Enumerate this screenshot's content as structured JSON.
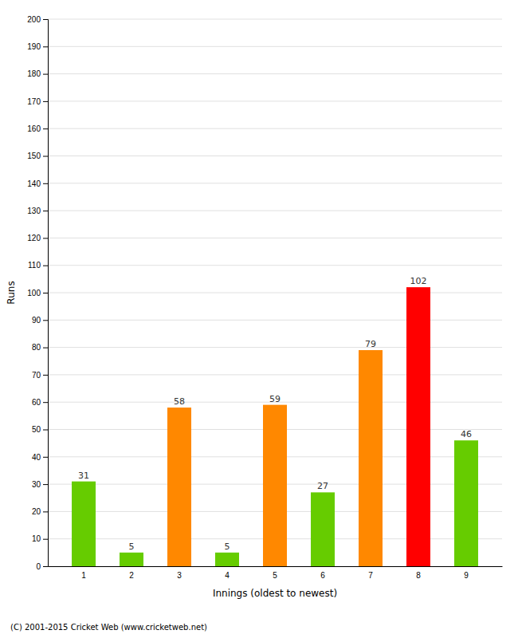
{
  "chart_data": {
    "type": "bar",
    "xlabel": "Innings (oldest to newest)",
    "ylabel": "Runs",
    "categories": [
      "1",
      "2",
      "3",
      "4",
      "5",
      "6",
      "7",
      "8",
      "9"
    ],
    "values": [
      31,
      5,
      58,
      5,
      59,
      27,
      79,
      102,
      46
    ],
    "colors": [
      "#66cc00",
      "#66cc00",
      "#ff8800",
      "#66cc00",
      "#ff8800",
      "#66cc00",
      "#ff8800",
      "#ff0000",
      "#66cc00"
    ],
    "ylim": [
      0,
      200
    ],
    "yticks": [
      0,
      10,
      20,
      30,
      40,
      50,
      60,
      70,
      80,
      90,
      100,
      110,
      120,
      130,
      140,
      150,
      160,
      170,
      180,
      190,
      200
    ],
    "grid": true,
    "data_labels": true,
    "annotations": [
      "(C) 2001-2015 Cricket Web (www.cricketweb.net)"
    ]
  }
}
